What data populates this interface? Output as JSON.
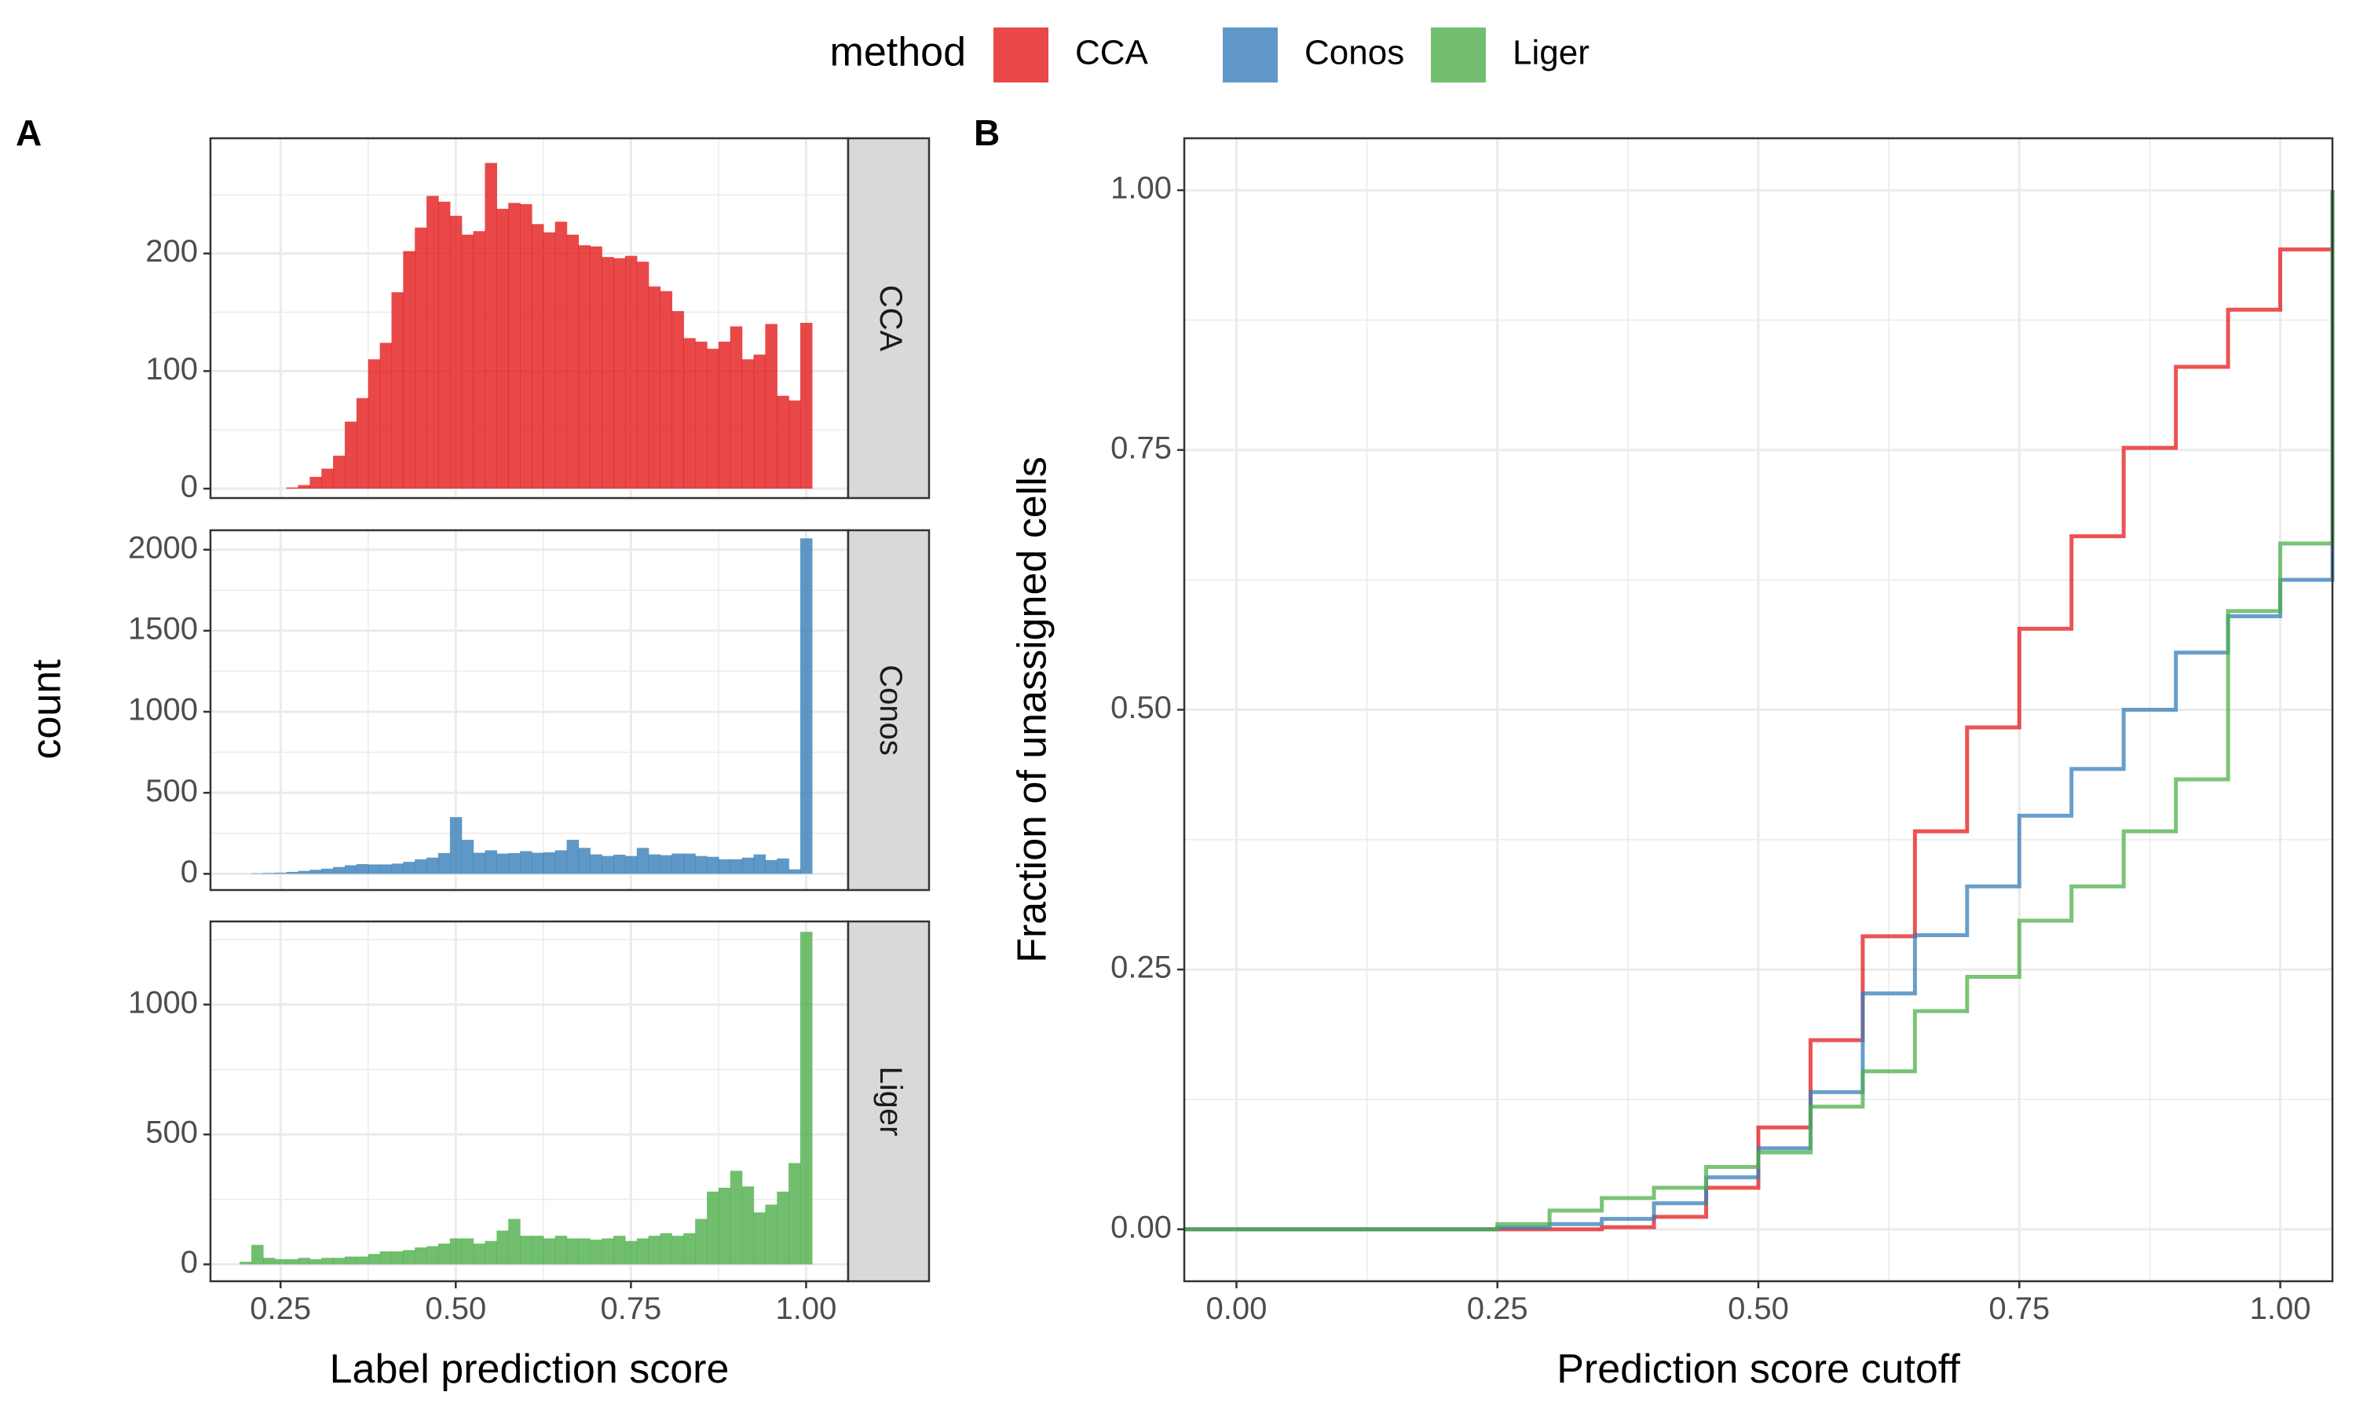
{
  "legend": {
    "title": "method",
    "items": [
      {
        "label": "CCA",
        "color": "#E41A1C"
      },
      {
        "label": "Conos",
        "color": "#377EB8"
      },
      {
        "label": "Liger",
        "color": "#4DAF4A"
      }
    ]
  },
  "panels": {
    "a": "A",
    "b": "B"
  },
  "chart_data": [
    {
      "type": "bar",
      "panel": "A",
      "subtype": "faceted histogram",
      "xlabel": "Label prediction score",
      "ylabel": "count",
      "xlim": [
        0.15,
        1.06
      ],
      "x_ticks": [
        "0.25",
        "0.50",
        "0.75",
        "1.00"
      ],
      "x_tick_values": [
        0.25,
        0.5,
        0.75,
        1.0
      ],
      "bin_width": 0.0167,
      "bin_centers": [
        0.1833,
        0.2,
        0.2167,
        0.2333,
        0.25,
        0.2667,
        0.2833,
        0.3,
        0.3167,
        0.3333,
        0.35,
        0.3667,
        0.3833,
        0.4,
        0.4167,
        0.4333,
        0.45,
        0.4667,
        0.4833,
        0.5,
        0.5167,
        0.5333,
        0.55,
        0.5667,
        0.5833,
        0.6,
        0.6167,
        0.6333,
        0.65,
        0.6667,
        0.6833,
        0.7,
        0.7167,
        0.7333,
        0.75,
        0.7667,
        0.7833,
        0.8,
        0.8167,
        0.8333,
        0.85,
        0.8667,
        0.8833,
        0.9,
        0.9167,
        0.9333,
        0.95,
        0.9667,
        0.9833,
        1.0,
        1.0167
      ],
      "facets": [
        {
          "strip": "CCA",
          "color": "#E41A1C",
          "ylim": [
            -8,
            298
          ],
          "y_ticks": [
            "0",
            "100",
            "200"
          ],
          "y_tick_values": [
            0,
            100,
            200
          ],
          "values": [
            0,
            0,
            0,
            0,
            0,
            1,
            3,
            10,
            17,
            28,
            57,
            77,
            110,
            124,
            167,
            202,
            222,
            249,
            244,
            232,
            216,
            219,
            277,
            238,
            243,
            242,
            225,
            218,
            227,
            216,
            207,
            206,
            197,
            196,
            198,
            193,
            172,
            168,
            151,
            128,
            125,
            119,
            125,
            138,
            110,
            114,
            140,
            79,
            75,
            141,
            0
          ]
        },
        {
          "strip": "Conos",
          "color": "#377EB8",
          "ylim": [
            -100,
            2120
          ],
          "y_ticks": [
            "0",
            "500",
            "1000",
            "1500",
            "2000"
          ],
          "y_tick_values": [
            0,
            500,
            1000,
            1500,
            2000
          ],
          "values": [
            0,
            0,
            3,
            5,
            7,
            12,
            18,
            25,
            32,
            42,
            53,
            60,
            58,
            58,
            63,
            74,
            90,
            100,
            128,
            350,
            210,
            130,
            145,
            125,
            128,
            140,
            130,
            133,
            145,
            210,
            160,
            120,
            110,
            118,
            110,
            160,
            120,
            115,
            125,
            125,
            110,
            105,
            90,
            90,
            100,
            120,
            85,
            95,
            28,
            2070,
            0
          ]
        },
        {
          "strip": "Liger",
          "color": "#4DAF4A",
          "ylim": [
            -65,
            1320
          ],
          "y_ticks": [
            "0",
            "500",
            "1000"
          ],
          "y_tick_values": [
            0,
            500,
            1000
          ],
          "values": [
            0,
            10,
            75,
            25,
            20,
            20,
            25,
            20,
            25,
            25,
            30,
            30,
            40,
            50,
            50,
            55,
            65,
            70,
            80,
            100,
            100,
            80,
            90,
            130,
            175,
            110,
            110,
            100,
            110,
            100,
            100,
            95,
            100,
            110,
            90,
            100,
            110,
            120,
            110,
            120,
            175,
            280,
            295,
            360,
            300,
            200,
            230,
            280,
            390,
            1280,
            0
          ]
        }
      ]
    },
    {
      "type": "line",
      "panel": "B",
      "subtype": "step",
      "xlabel": "Prediction score cutoff",
      "ylabel": "Fraction of unassigned cells",
      "xlim": [
        -0.05,
        1.05
      ],
      "ylim": [
        -0.05,
        1.05
      ],
      "x_ticks": [
        "0.00",
        "0.25",
        "0.50",
        "0.75",
        "1.00"
      ],
      "x_tick_values": [
        0,
        0.25,
        0.5,
        0.75,
        1.0
      ],
      "y_ticks": [
        "0.00",
        "0.25",
        "0.50",
        "0.75",
        "1.00"
      ],
      "y_tick_values": [
        0,
        0.25,
        0.5,
        0.75,
        1.0
      ],
      "x": [
        -0.05,
        0,
        0.05,
        0.1,
        0.15,
        0.2,
        0.25,
        0.3,
        0.35,
        0.4,
        0.45,
        0.5,
        0.55,
        0.6,
        0.65,
        0.7,
        0.75,
        0.8,
        0.85,
        0.9,
        0.95,
        1.0,
        1.05
      ],
      "series": [
        {
          "name": "CCA",
          "color": "#E41A1C",
          "values": [
            0,
            0,
            0,
            0,
            0,
            0,
            0,
            0,
            0.002,
            0.012,
            0.04,
            0.098,
            0.182,
            0.282,
            0.383,
            0.483,
            0.578,
            0.667,
            0.752,
            0.83,
            0.885,
            0.943,
            1.0
          ]
        },
        {
          "name": "Conos",
          "color": "#377EB8",
          "values": [
            0,
            0,
            0,
            0,
            0,
            0,
            0.002,
            0.005,
            0.01,
            0.025,
            0.05,
            0.078,
            0.132,
            0.227,
            0.283,
            0.33,
            0.398,
            0.443,
            0.5,
            0.555,
            0.59,
            0.625,
            1.0
          ]
        },
        {
          "name": "Liger",
          "color": "#4DAF4A",
          "values": [
            0,
            0,
            0,
            0,
            0,
            0,
            0.005,
            0.018,
            0.03,
            0.04,
            0.06,
            0.074,
            0.118,
            0.152,
            0.21,
            0.243,
            0.297,
            0.33,
            0.383,
            0.433,
            0.595,
            0.66,
            1.0
          ]
        }
      ]
    }
  ]
}
